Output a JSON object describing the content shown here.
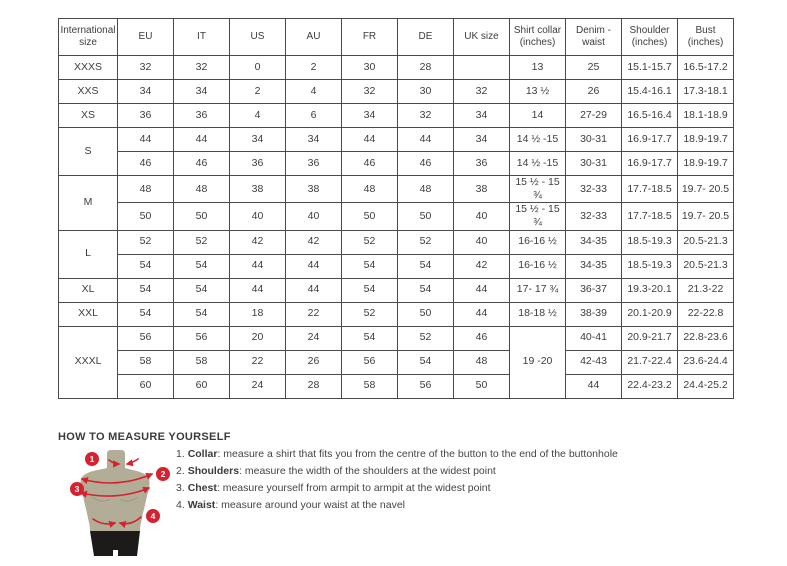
{
  "colors": {
    "accent_red": "#d6212f",
    "mannequin_body": "#b1ad96",
    "mannequin_shorts": "#1c1b19",
    "table_border": "#4a4a4a",
    "text": "#3d3d3b"
  },
  "size_table": {
    "headers": [
      "International size",
      "EU",
      "IT",
      "US",
      "AU",
      "FR",
      "DE",
      "UK size",
      "Shirt collar (inches)",
      "Denim - waist",
      "Shoulder (inches)",
      "Bust (inches)"
    ],
    "rows": [
      [
        "XXXS",
        "32",
        "32",
        "0",
        "2",
        "30",
        "28",
        "",
        "13",
        "25",
        "15.1-15.7",
        "16.5-17.2"
      ],
      [
        "XXS",
        "34",
        "34",
        "2",
        "4",
        "32",
        "30",
        "32",
        "13 ½",
        "26",
        "15.4-16.1",
        "17.3-18.1"
      ],
      [
        "XS",
        "36",
        "36",
        "4",
        "6",
        "34",
        "32",
        "34",
        "14",
        "27-29",
        "16.5-16.4",
        "18.1-18.9"
      ],
      [
        {
          "t": "S",
          "rs": 2
        },
        "44",
        "44",
        "34",
        "34",
        "44",
        "44",
        "34",
        "14 ½ -15",
        "30-31",
        "16.9-17.7",
        "18.9-19.7"
      ],
      [
        null,
        "46",
        "46",
        "36",
        "36",
        "46",
        "46",
        "36",
        "14 ½ -15",
        "30-31",
        "16.9-17.7",
        "18.9-19.7"
      ],
      [
        {
          "t": "M",
          "rs": 2
        },
        "48",
        "48",
        "38",
        "38",
        "48",
        "48",
        "38",
        "15 ½ - 15 ¾",
        "32-33",
        "17.7-18.5",
        "19.7- 20.5"
      ],
      [
        null,
        "50",
        "50",
        "40",
        "40",
        "50",
        "50",
        "40",
        "15 ½ - 15 ¾",
        "32-33",
        "17.7-18.5",
        "19.7- 20.5"
      ],
      [
        {
          "t": "L",
          "rs": 2
        },
        "52",
        "52",
        "42",
        "42",
        "52",
        "52",
        "40",
        "16-16 ½",
        "34-35",
        "18.5-19.3",
        "20.5-21.3"
      ],
      [
        null,
        "54",
        "54",
        "44",
        "44",
        "54",
        "54",
        "42",
        "16-16 ½",
        "34-35",
        "18.5-19.3",
        "20.5-21.3"
      ],
      [
        "XL",
        "54",
        "54",
        "44",
        "44",
        "54",
        "54",
        "44",
        "17- 17 ¾",
        "36-37",
        "19.3-20.1",
        "21.3-22"
      ],
      [
        "XXL",
        "54",
        "54",
        "18",
        "22",
        "52",
        "50",
        "44",
        "18-18 ½",
        "38-39",
        "20.1-20.9",
        "22-22.8"
      ],
      [
        {
          "t": "XXXL",
          "rs": 3
        },
        "56",
        "56",
        "20",
        "24",
        "54",
        "52",
        "46",
        {
          "t": "19 -20",
          "rs": 3
        },
        "40-41",
        "20.9-21.7",
        "22.8-23.6"
      ],
      [
        null,
        "58",
        "58",
        "22",
        "26",
        "56",
        "54",
        "48",
        null,
        "42-43",
        "21.7-22.4",
        "23.6-24.4"
      ],
      [
        null,
        "60",
        "60",
        "24",
        "28",
        "58",
        "56",
        "50",
        null,
        "44",
        "22.4-23.2",
        "24.4-25.2"
      ]
    ]
  },
  "measure": {
    "title": "HOW TO MEASURE YOURSELF",
    "steps": [
      {
        "num": "1",
        "label": "Collar",
        "text": ": measure a shirt that fits you from the centre of the button to the end of the buttonhole"
      },
      {
        "num": "2",
        "label": "Shoulders",
        "text": ": measure the width of the shoulders at the widest point"
      },
      {
        "num": "3",
        "label": "Chest",
        "text": ": measure yourself from armpit to armpit at the widest point"
      },
      {
        "num": "4",
        "label": "Waist",
        "text": ": measure around your waist at the navel"
      }
    ]
  }
}
